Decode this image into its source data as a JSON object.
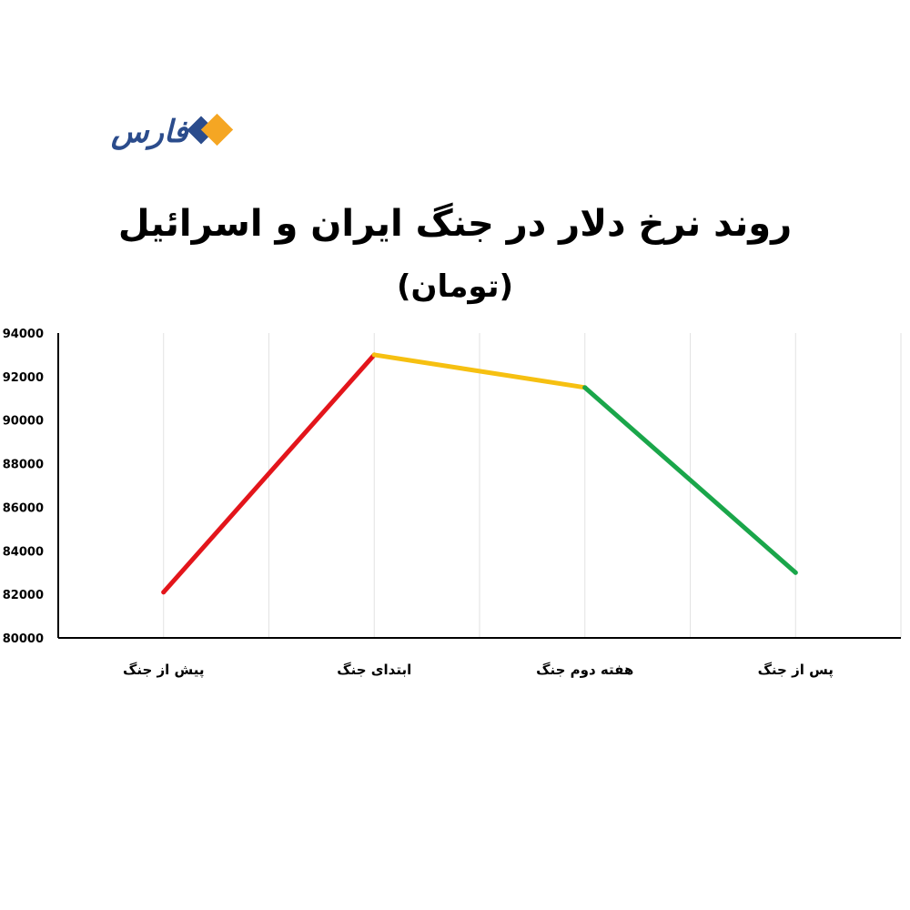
{
  "logo": {
    "text": "فارس",
    "color": "#2b4c8c",
    "accent_colors": [
      "#2b4c8c",
      "#f5a623"
    ]
  },
  "chart_data": {
    "type": "line",
    "title": "روند نرخ دلار در جنگ ایران و اسرائیل",
    "subtitle": "(تومان)",
    "categories": [
      "پیش از جنگ",
      "ابتدای جنگ",
      "هفته دوم جنگ",
      "پس از جنگ"
    ],
    "values": [
      82100,
      93000,
      91500,
      83000
    ],
    "segment_colors": [
      "#e3151b",
      "#f6c011",
      "#1aa64a"
    ],
    "ylim": [
      80000,
      94000
    ],
    "yticks": [
      80000,
      82000,
      84000,
      86000,
      88000,
      90000,
      92000,
      94000
    ],
    "grid": "vertical"
  }
}
